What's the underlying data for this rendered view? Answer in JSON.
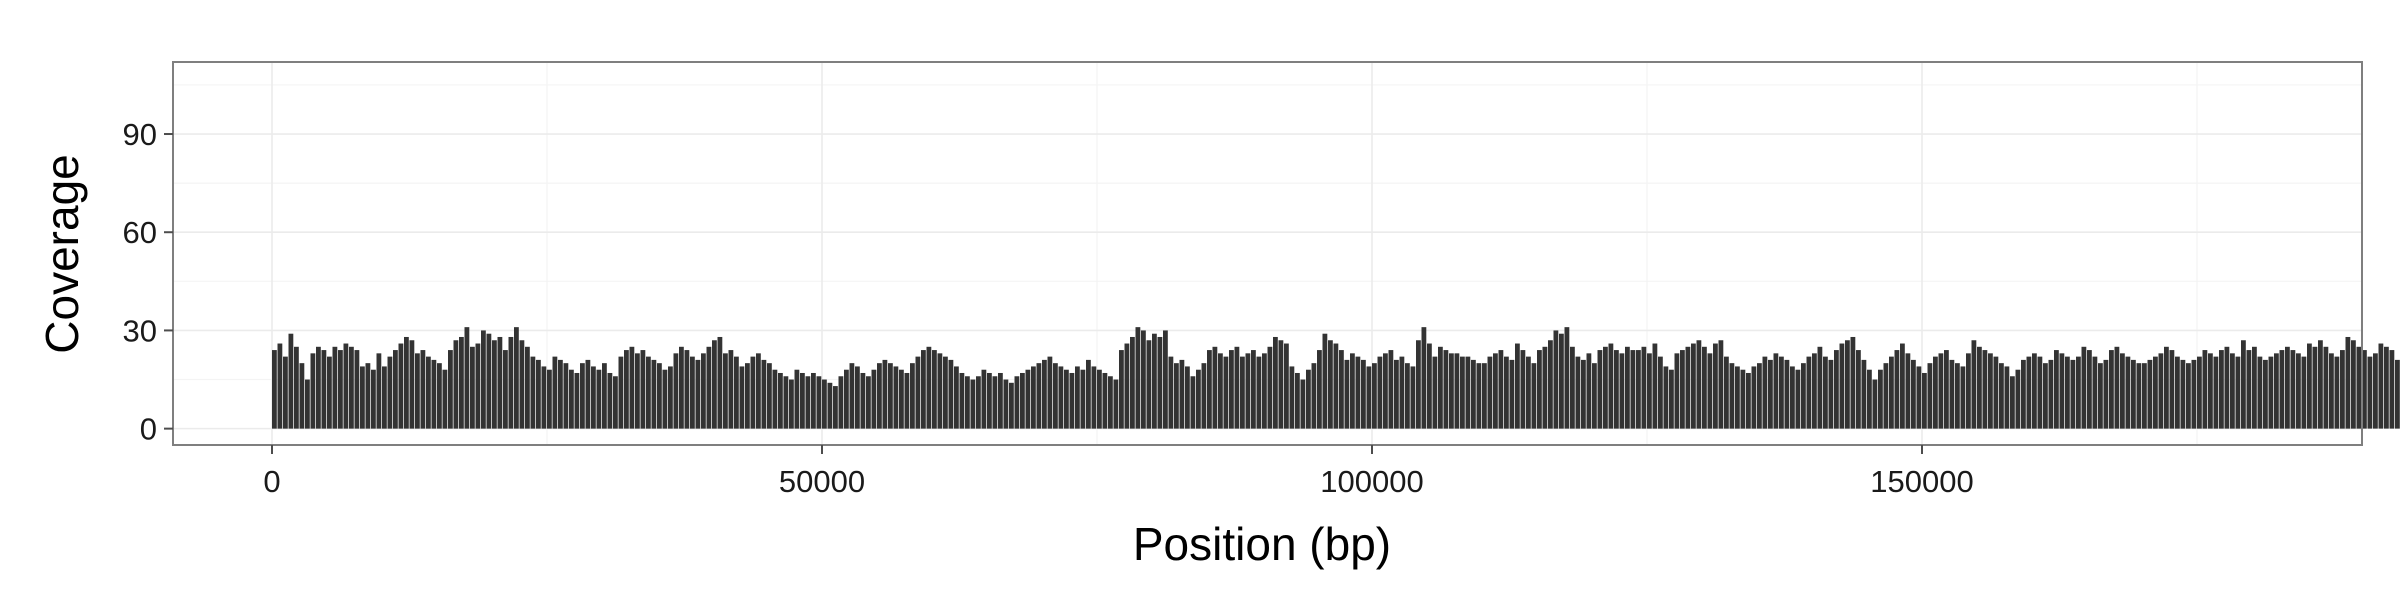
{
  "chart_data": {
    "type": "bar",
    "xlabel": "Position (bp)",
    "ylabel": "Coverage",
    "xlim": [
      -9000,
      190000
    ],
    "ylim": [
      -5,
      112
    ],
    "xticks": [
      0,
      50000,
      100000,
      150000
    ],
    "xtick_labels": [
      "0",
      "50000",
      "100000",
      "150000"
    ],
    "yticks": [
      0,
      30,
      60,
      90
    ],
    "ytick_labels": [
      "0",
      "30",
      "60",
      "90"
    ],
    "grid": true,
    "bin_width": 500,
    "x_start": 0,
    "values": [
      24,
      26,
      22,
      29,
      25,
      20,
      15,
      23,
      25,
      24,
      22,
      25,
      24,
      26,
      25,
      24,
      19,
      20,
      18,
      23,
      19,
      22,
      24,
      26,
      28,
      27,
      23,
      24,
      22,
      21,
      20,
      18,
      24,
      27,
      28,
      31,
      25,
      26,
      30,
      29,
      27,
      28,
      24,
      28,
      31,
      27,
      25,
      22,
      21,
      19,
      18,
      22,
      21,
      20,
      18,
      17,
      20,
      21,
      19,
      18,
      20,
      17,
      16,
      22,
      24,
      25,
      23,
      24,
      22,
      21,
      20,
      18,
      19,
      23,
      25,
      24,
      22,
      21,
      23,
      25,
      27,
      28,
      23,
      24,
      22,
      19,
      20,
      22,
      23,
      21,
      20,
      18,
      17,
      16,
      15,
      18,
      17,
      16,
      17,
      16,
      15,
      14,
      13,
      16,
      18,
      20,
      19,
      17,
      16,
      18,
      20,
      21,
      20,
      19,
      18,
      17,
      20,
      22,
      24,
      25,
      24,
      23,
      22,
      21,
      19,
      17,
      16,
      15,
      16,
      18,
      17,
      16,
      17,
      15,
      14,
      16,
      17,
      18,
      19,
      20,
      21,
      22,
      20,
      19,
      18,
      17,
      19,
      18,
      21,
      19,
      18,
      17,
      16,
      15,
      24,
      26,
      28,
      31,
      30,
      27,
      29,
      28,
      30,
      22,
      20,
      21,
      19,
      16,
      18,
      20,
      24,
      25,
      23,
      22,
      24,
      25,
      22,
      23,
      24,
      22,
      23,
      25,
      28,
      27,
      26,
      19,
      17,
      15,
      18,
      20,
      24,
      29,
      27,
      26,
      24,
      21,
      23,
      22,
      21,
      19,
      20,
      22,
      23,
      24,
      21,
      22,
      20,
      19,
      27,
      31,
      26,
      22,
      25,
      24,
      23,
      23,
      22,
      22,
      21,
      20,
      20,
      22,
      23,
      24,
      22,
      21,
      26,
      24,
      22,
      20,
      24,
      25,
      27,
      30,
      29,
      31,
      25,
      22,
      21,
      23,
      20,
      24,
      25,
      26,
      24,
      23,
      25,
      24,
      24,
      25,
      23,
      26,
      22,
      19,
      18,
      23,
      24,
      25,
      26,
      27,
      25,
      23,
      26,
      27,
      22,
      20,
      19,
      18,
      17,
      19,
      20,
      22,
      21,
      23,
      22,
      21,
      19,
      18,
      20,
      22,
      23,
      25,
      22,
      21,
      24,
      26,
      27,
      28,
      24,
      21,
      18,
      15,
      18,
      20,
      22,
      24,
      26,
      23,
      21,
      19,
      17,
      20,
      22,
      23,
      24,
      21,
      20,
      19,
      23,
      27,
      25,
      24,
      23,
      22,
      20,
      19,
      16,
      18,
      21,
      22,
      23,
      22,
      20,
      21,
      24,
      23,
      22,
      21,
      22,
      25,
      24,
      22,
      20,
      21,
      24,
      25,
      23,
      22,
      21,
      20,
      20,
      21,
      22,
      23,
      25,
      24,
      22,
      21,
      20,
      21,
      22,
      24,
      23,
      22,
      24,
      25,
      23,
      22,
      27,
      24,
      25,
      22,
      21,
      22,
      23,
      24,
      25,
      24,
      23,
      22,
      26,
      25,
      27,
      25,
      23,
      22,
      24,
      28,
      27,
      25,
      24,
      22,
      23,
      26,
      25,
      24,
      21,
      22,
      23,
      25,
      27,
      29,
      33,
      27,
      25,
      30,
      28,
      24,
      22,
      21,
      23,
      24,
      26,
      27,
      25,
      24,
      22,
      23,
      26,
      27,
      25,
      23,
      24,
      22,
      21,
      20,
      21,
      23,
      24,
      22,
      21,
      20,
      22,
      24,
      23,
      22,
      21,
      19,
      20,
      22,
      23,
      25,
      24,
      27,
      26,
      25,
      24,
      33,
      31,
      32,
      28,
      27,
      24,
      23,
      28,
      29,
      31,
      27,
      24,
      21,
      23,
      25,
      26,
      29,
      30,
      27,
      24,
      23,
      22,
      24,
      26,
      27,
      25,
      28,
      33,
      30,
      27,
      24,
      26,
      28,
      30,
      25,
      22,
      24,
      27,
      29,
      28,
      27,
      30,
      25,
      23,
      24,
      26,
      28,
      27,
      25,
      21,
      20,
      24,
      27,
      31,
      33,
      29,
      20,
      16,
      45,
      74,
      65,
      72,
      88,
      62,
      40,
      28,
      31,
      38,
      48,
      52,
      30,
      22,
      18,
      16,
      14,
      13,
      18,
      20,
      16,
      9,
      12,
      31,
      40,
      97,
      108,
      92,
      72,
      48,
      31,
      24,
      26,
      25,
      27,
      24,
      28,
      25,
      23,
      26,
      29,
      27,
      26,
      30,
      28,
      33,
      25,
      24,
      26,
      23,
      27,
      25,
      24,
      22,
      27,
      26,
      28,
      25,
      24,
      27,
      29,
      28,
      26,
      25,
      27,
      24,
      26,
      25,
      28,
      27,
      26,
      31,
      30,
      29,
      27,
      26,
      29,
      23,
      24,
      22,
      25,
      28,
      31,
      30,
      34,
      33,
      31,
      29,
      33,
      30,
      31,
      28,
      27,
      32,
      26,
      31,
      29,
      30,
      28,
      27,
      31,
      25,
      24,
      23,
      22,
      21,
      22,
      23,
      25,
      27,
      28,
      32,
      33,
      39,
      41,
      43,
      35,
      30,
      28,
      27,
      26,
      24,
      25,
      26,
      23,
      25,
      24,
      22,
      23,
      21,
      22,
      20,
      21,
      20,
      19,
      20,
      21,
      20,
      19,
      20,
      21,
      22,
      24,
      28,
      33,
      31,
      32,
      29,
      30,
      31,
      27,
      24,
      22,
      25,
      27,
      26,
      28,
      25,
      24,
      26,
      27,
      25,
      28,
      29,
      30,
      25,
      24,
      27,
      29,
      31,
      32,
      28,
      25,
      23,
      21,
      20,
      19,
      20,
      22,
      21,
      23,
      22,
      24,
      25,
      26,
      24,
      23,
      24,
      22,
      27,
      28,
      31,
      27,
      26,
      24,
      22,
      25,
      28,
      27,
      29,
      31,
      33,
      30,
      28,
      26,
      24,
      23,
      21,
      25,
      28,
      31,
      30,
      28,
      26,
      24,
      22,
      20,
      23,
      25,
      27,
      29,
      32,
      34,
      35,
      33,
      31,
      28,
      27,
      25,
      24,
      26,
      28,
      30,
      29,
      27,
      26
    ]
  }
}
